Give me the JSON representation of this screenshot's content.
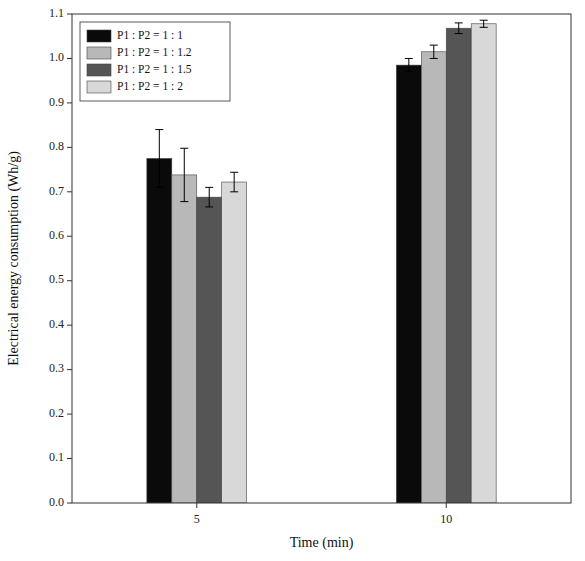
{
  "chart_data": {
    "type": "bar",
    "xlabel": "Time (min)",
    "ylabel": "Electrical energy consumption (Wh/g)",
    "categories": [
      "5",
      "10"
    ],
    "series": [
      {
        "name": "P1 : P2 = 1 : 1",
        "color": "#0a0a0a",
        "values": [
          0.775,
          0.985
        ],
        "errors": [
          0.065,
          0.015
        ]
      },
      {
        "name": "P1 : P2 = 1 : 1.2",
        "color": "#b8b8b8",
        "values": [
          0.738,
          1.015
        ],
        "errors": [
          0.06,
          0.015
        ]
      },
      {
        "name": "P1 : P2 = 1 : 1.5",
        "color": "#555555",
        "values": [
          0.688,
          1.068
        ],
        "errors": [
          0.022,
          0.012
        ]
      },
      {
        "name": "P1 : P2 = 1 : 2",
        "color": "#d8d8d8",
        "values": [
          0.722,
          1.078
        ],
        "errors": [
          0.022,
          0.008
        ]
      }
    ],
    "ylim": [
      0.0,
      1.1
    ],
    "yticks": [
      {
        "value": 0,
        "label": "0.0"
      },
      0.1,
      0.2,
      0.3,
      0.4,
      0.5,
      0.6,
      0.7,
      0.8,
      0.9,
      {
        "value": 1,
        "label": "1.0"
      },
      1.1
    ],
    "grid": false,
    "legend": "upper-left"
  }
}
